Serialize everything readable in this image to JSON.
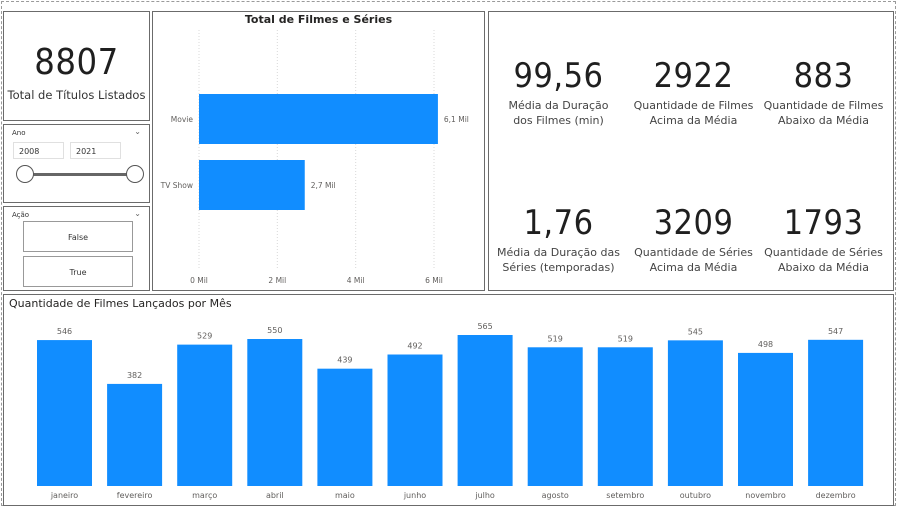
{
  "kpi_total": {
    "value": "8807",
    "label": "Total de Títulos Listados"
  },
  "slicer_ano": {
    "title": "Ano",
    "start": "2008",
    "end": "2021"
  },
  "slicer_acao": {
    "title": "Ação",
    "options": [
      "False",
      "True"
    ]
  },
  "kpis": [
    {
      "value": "99,56",
      "label_line1": "Média da Duração",
      "label_line2": "dos Filmes (min)"
    },
    {
      "value": "2922",
      "label_line1": "Quantidade de Filmes",
      "label_line2": "Acima da Média"
    },
    {
      "value": "883",
      "label_line1": "Quantidade de Filmes",
      "label_line2": "Abaixo da Média"
    },
    {
      "value": "1,76",
      "label_line1": "Média da Duração das",
      "label_line2": "Séries (temporadas)"
    },
    {
      "value": "3209",
      "label_line1": "Quantidade de Séries",
      "label_line2": "Acima da Média"
    },
    {
      "value": "1793",
      "label_line1": "Quantidade de Séries",
      "label_line2": "Abaixo da Média"
    }
  ],
  "colors": {
    "bar": "#118DFF",
    "grid": "#d9d9d9",
    "text": "#605E5C"
  },
  "chart_data": [
    {
      "type": "bar",
      "orientation": "horizontal",
      "title": "Total de Filmes e Séries",
      "categories": [
        "Movie",
        "TV Show"
      ],
      "values": [
        6.1,
        2.7
      ],
      "data_labels": [
        "6,1 Mil",
        "2,7 Mil"
      ],
      "xlim": [
        0,
        6.5
      ],
      "xticks": [
        0,
        2,
        4,
        6
      ],
      "xtick_labels": [
        "0 Mil",
        "2 Mil",
        "4 Mil",
        "6 Mil"
      ],
      "grid": true
    },
    {
      "type": "bar",
      "title": "Quantidade de Filmes Lançados por Mês",
      "categories": [
        "janeiro",
        "fevereiro",
        "março",
        "abril",
        "maio",
        "junho",
        "julho",
        "agosto",
        "setembro",
        "outubro",
        "novembro",
        "dezembro"
      ],
      "values": [
        546,
        382,
        529,
        550,
        439,
        492,
        565,
        519,
        519,
        545,
        498,
        547
      ],
      "ylim": [
        0,
        565
      ],
      "grid": false
    }
  ]
}
